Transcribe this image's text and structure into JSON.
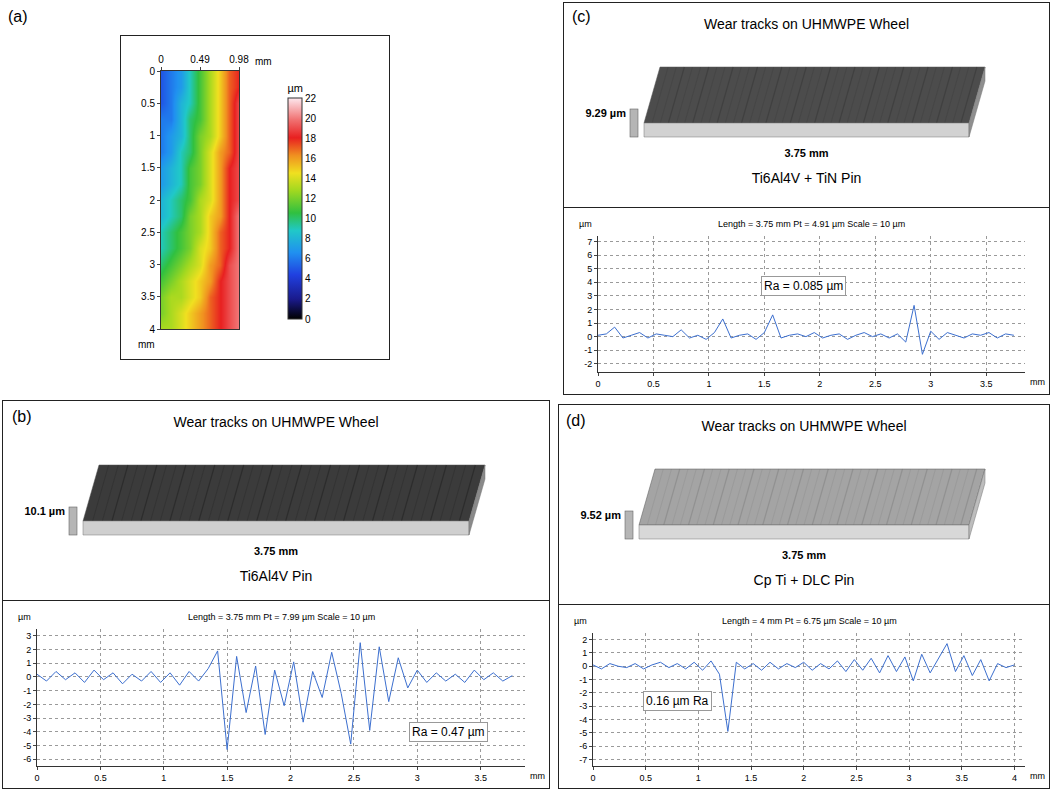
{
  "chart_data": [
    {
      "panel": "(a)",
      "type": "heatmap",
      "x": [
        0,
        0.1225,
        0.245,
        0.3675,
        0.49,
        0.6125,
        0.735,
        0.8575,
        0.98
      ],
      "y": [
        0,
        0.25,
        0.5,
        0.75,
        1,
        1.25,
        1.5,
        1.75,
        2,
        2.25,
        2.5,
        2.75,
        3,
        3.25,
        3.5,
        3.75,
        4
      ],
      "z": [
        [
          5,
          6,
          7,
          9,
          11,
          13,
          15,
          17,
          18
        ],
        [
          5,
          6,
          7,
          9,
          11,
          13,
          15,
          17,
          18
        ],
        [
          5,
          6,
          8,
          9,
          11,
          13,
          15,
          17,
          19
        ],
        [
          6,
          6,
          8,
          10,
          11,
          13,
          15,
          17,
          19
        ],
        [
          6,
          7,
          8,
          10,
          12,
          13,
          15,
          17,
          19
        ],
        [
          6,
          7,
          9,
          10,
          12,
          14,
          16,
          17,
          19
        ],
        [
          7,
          8,
          9,
          11,
          12,
          14,
          16,
          18,
          19
        ],
        [
          7,
          8,
          9,
          11,
          12,
          14,
          16,
          18,
          19
        ],
        [
          8,
          9,
          10,
          11,
          13,
          14,
          16,
          18,
          19
        ],
        [
          8,
          9,
          10,
          12,
          13,
          15,
          16,
          18,
          20
        ],
        [
          9,
          10,
          11,
          12,
          13,
          15,
          17,
          18,
          20
        ],
        [
          9,
          10,
          11,
          12,
          14,
          15,
          17,
          18,
          20
        ],
        [
          10,
          11,
          12,
          13,
          14,
          16,
          17,
          19,
          20
        ],
        [
          11,
          12,
          13,
          14,
          15,
          16,
          18,
          19,
          20
        ],
        [
          12,
          13,
          13,
          14,
          15,
          17,
          18,
          19,
          20
        ],
        [
          12,
          13,
          14,
          15,
          16,
          17,
          18,
          19,
          20
        ],
        [
          13,
          13,
          14,
          15,
          16,
          17,
          18,
          19,
          20
        ]
      ],
      "xlim": [
        0,
        0.98
      ],
      "xticks": [
        0,
        0.49,
        0.98
      ],
      "ylim": [
        0,
        4
      ],
      "yticks": [
        0,
        0.5,
        1,
        1.5,
        2,
        2.5,
        3,
        3.5,
        4
      ],
      "xlabel": "mm",
      "ylabel": "mm",
      "colorbar": {
        "title": "µm",
        "range": [
          0,
          22
        ],
        "ticks": [
          0,
          2,
          4,
          6,
          8,
          10,
          12,
          14,
          16,
          18,
          20,
          22
        ]
      }
    },
    {
      "panel": "(b)",
      "type": "line",
      "surface_view": {
        "title": "Wear tracks on UHMWPE Wheel",
        "height_label": "10.1 µm",
        "length_label": "3.75 mm",
        "pin": "Ti6Al4V Pin"
      },
      "subtitle": "Length = 3.75 mm Pt = 7.99 µm Scale = 10 µm",
      "xlabel": "mm",
      "ylabel": "µm",
      "x": [
        0,
        0.075,
        0.15,
        0.225,
        0.3,
        0.375,
        0.45,
        0.525,
        0.6,
        0.675,
        0.75,
        0.825,
        0.9,
        0.975,
        1.05,
        1.125,
        1.2,
        1.275,
        1.35,
        1.425,
        1.5,
        1.575,
        1.65,
        1.725,
        1.8,
        1.875,
        1.95,
        2.025,
        2.1,
        2.175,
        2.25,
        2.325,
        2.4,
        2.475,
        2.55,
        2.625,
        2.7,
        2.775,
        2.85,
        2.925,
        3,
        3.075,
        3.15,
        3.225,
        3.3,
        3.375,
        3.45,
        3.525,
        3.6,
        3.675,
        3.75
      ],
      "values": [
        0.2,
        -0.3,
        0.4,
        -0.2,
        0.3,
        -0.4,
        0.5,
        -0.2,
        0.3,
        -0.5,
        0.2,
        -0.3,
        0.4,
        -0.4,
        0.3,
        -0.6,
        0.4,
        -0.3,
        0.6,
        1.9,
        -5.3,
        1.5,
        -2.6,
        0.8,
        -4.2,
        0.5,
        -2.1,
        1.1,
        -3.3,
        0.4,
        -1.5,
        1.8,
        -1.2,
        -4.9,
        2.5,
        -3.9,
        2.2,
        -1.8,
        1.4,
        -0.8,
        0.5,
        -0.4,
        0.3,
        -0.3,
        0.2,
        -0.4,
        0.5,
        -0.2,
        0.3,
        -0.3,
        0.1
      ],
      "color": "#3c6fcf",
      "xlim": [
        0,
        3.85
      ],
      "xticks": [
        0,
        0.5,
        1,
        1.5,
        2,
        2.5,
        3,
        3.5
      ],
      "ylim": [
        -6.5,
        3.5
      ],
      "yticks": [
        -6,
        -5,
        -4,
        -3,
        -2,
        -1,
        0,
        1,
        2,
        3
      ],
      "grid": true,
      "annotations": [
        {
          "text": "Ra = 0.47 µm",
          "x": 3.25,
          "y": -4
        }
      ]
    },
    {
      "panel": "(c)",
      "type": "line",
      "surface_view": {
        "title": "Wear tracks on UHMWPE Wheel",
        "height_label": "9.29 µm",
        "length_label": "3.75 mm",
        "pin": "Ti6Al4V + TiN Pin"
      },
      "subtitle": "Length = 3.75 mm Pt = 4.91 µm Scale = 10 µm",
      "xlabel": "mm",
      "ylabel": "µm",
      "x": [
        0,
        0.075,
        0.15,
        0.225,
        0.3,
        0.375,
        0.45,
        0.525,
        0.6,
        0.675,
        0.75,
        0.825,
        0.9,
        0.975,
        1.05,
        1.125,
        1.2,
        1.275,
        1.35,
        1.425,
        1.5,
        1.575,
        1.65,
        1.725,
        1.8,
        1.875,
        1.95,
        2.025,
        2.1,
        2.175,
        2.25,
        2.325,
        2.4,
        2.475,
        2.55,
        2.625,
        2.7,
        2.775,
        2.85,
        2.925,
        3,
        3.075,
        3.15,
        3.225,
        3.3,
        3.375,
        3.45,
        3.525,
        3.6,
        3.675,
        3.75
      ],
      "values": [
        0.1,
        0.2,
        0.7,
        -0.1,
        0.1,
        0.3,
        -0.1,
        0.2,
        0.1,
        0,
        0.5,
        -0.1,
        0.1,
        -0.2,
        0.3,
        1.3,
        -0.1,
        0.1,
        0.2,
        -0.2,
        0.3,
        1.6,
        -0.1,
        0.1,
        0.2,
        0,
        0.3,
        -0.1,
        0.1,
        0.2,
        -0.2,
        0.1,
        0.3,
        0,
        0.2,
        -0.1,
        0.2,
        -0.4,
        2.3,
        -1.3,
        0.4,
        -0.2,
        0.3,
        0.1,
        -0.1,
        0.2,
        0.1,
        0.3,
        -0.1,
        0.2,
        0.1
      ],
      "color": "#3c6fcf",
      "xlim": [
        0,
        3.85
      ],
      "xticks": [
        0,
        0.5,
        1,
        1.5,
        2,
        2.5,
        3,
        3.5
      ],
      "ylim": [
        -2.6,
        7.4
      ],
      "yticks": [
        -2,
        -1,
        0,
        1,
        2,
        3,
        4,
        5,
        6,
        7
      ],
      "grid": true,
      "annotations": [
        {
          "text": "Ra = 0.085 µm",
          "x": 1.85,
          "y": 3.7
        }
      ]
    },
    {
      "panel": "(d)",
      "type": "line",
      "surface_view": {
        "title": "Wear tracks on UHMWPE Wheel",
        "height_label": "9.52 µm",
        "length_label": "3.75 mm",
        "pin": "Cp Ti + DLC Pin"
      },
      "subtitle": "Length = 4 mm Pt = 6.75 µm Scale = 10 µm",
      "xlabel": "mm",
      "ylabel": "µm",
      "x": [
        0,
        0.08,
        0.16,
        0.24,
        0.32,
        0.4,
        0.48,
        0.56,
        0.64,
        0.72,
        0.8,
        0.88,
        0.96,
        1.04,
        1.12,
        1.2,
        1.28,
        1.36,
        1.44,
        1.52,
        1.6,
        1.68,
        1.76,
        1.84,
        1.92,
        2,
        2.08,
        2.16,
        2.24,
        2.32,
        2.4,
        2.48,
        2.56,
        2.64,
        2.72,
        2.8,
        2.88,
        2.96,
        3.04,
        3.12,
        3.2,
        3.28,
        3.36,
        3.44,
        3.52,
        3.6,
        3.68,
        3.76,
        3.84,
        3.92,
        4
      ],
      "values": [
        0.1,
        -0.2,
        0.2,
        0,
        -0.1,
        0.2,
        -0.2,
        0.1,
        0.3,
        -0.1,
        0.2,
        -0.2,
        0.3,
        -0.3,
        0.4,
        -0.6,
        -4.9,
        0.3,
        -0.2,
        0.2,
        -0.3,
        0.3,
        -0.2,
        0.2,
        -0.1,
        0.3,
        -0.3,
        0.2,
        -0.2,
        0.4,
        -0.4,
        0.5,
        -0.3,
        0.6,
        -0.5,
        0.8,
        -0.4,
        0.7,
        -1.1,
        0.9,
        -0.5,
        0.6,
        1.7,
        -0.4,
        0.8,
        -0.7,
        0.5,
        -1.1,
        0.2,
        -0.1,
        0.1
      ],
      "color": "#3c6fcf",
      "xlim": [
        0,
        4.1
      ],
      "xticks": [
        0,
        0.5,
        1,
        1.5,
        2,
        2.5,
        3,
        3.5,
        4
      ],
      "ylim": [
        -7.5,
        2.5
      ],
      "yticks": [
        -7,
        -6,
        -5,
        -4,
        -3,
        -2,
        -1,
        0,
        1,
        2
      ],
      "grid": true,
      "annotations": [
        {
          "text": "0.16 µm Ra",
          "x": 0.8,
          "y": -2.6
        }
      ]
    }
  ]
}
